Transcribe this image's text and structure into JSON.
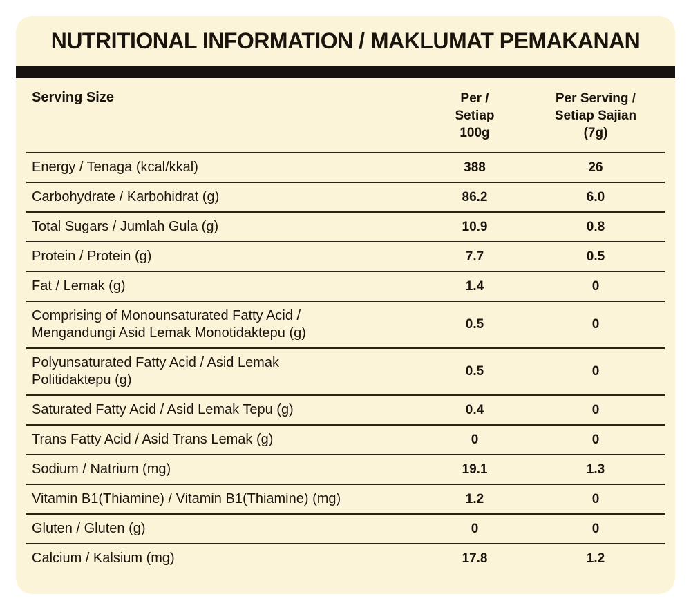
{
  "title": "NUTRITIONAL INFORMATION / MAKLUMAT PEMAKANAN",
  "colors": {
    "page-bg": "#FFFFFF",
    "card-bg": "#FBF4D9",
    "bar": "#171310",
    "ink": "#1A150C",
    "line": "#2B2415"
  },
  "table": {
    "header": {
      "label": "Serving Size",
      "col1": "Per /\nSetiap\n100g",
      "col2": "Per Serving /\nSetiap Sajian\n(7g)"
    },
    "rows": [
      {
        "label": "Energy / Tenaga (kcal/kkal)",
        "per_100g": "388",
        "per_serving": "26"
      },
      {
        "label": "Carbohydrate / Karbohidrat (g)",
        "per_100g": "86.2",
        "per_serving": "6.0"
      },
      {
        "label": "Total Sugars / Jumlah Gula (g)",
        "per_100g": "10.9",
        "per_serving": "0.8"
      },
      {
        "label": "Protein / Protein (g)",
        "per_100g": "7.7",
        "per_serving": "0.5"
      },
      {
        "label": "Fat / Lemak (g)",
        "per_100g": "1.4",
        "per_serving": "0"
      },
      {
        "label": "Comprising of Monounsaturated Fatty Acid /\nMengandungi Asid Lemak Monotidaktepu (g)",
        "per_100g": "0.5",
        "per_serving": "0"
      },
      {
        "label": "Polyunsaturated Fatty Acid / Asid Lemak\nPolitidaktepu (g)",
        "per_100g": "0.5",
        "per_serving": "0"
      },
      {
        "label": "Saturated Fatty Acid / Asid Lemak Tepu (g)",
        "per_100g": "0.4",
        "per_serving": "0"
      },
      {
        "label": "Trans Fatty Acid / Asid Trans Lemak (g)",
        "per_100g": "0",
        "per_serving": "0"
      },
      {
        "label": "Sodium / Natrium (mg)",
        "per_100g": "19.1",
        "per_serving": "1.3"
      },
      {
        "label": "Vitamin B1(Thiamine) / Vitamin B1(Thiamine) (mg)",
        "per_100g": "1.2",
        "per_serving": "0"
      },
      {
        "label": "Gluten / Gluten (g)",
        "per_100g": "0",
        "per_serving": "0"
      },
      {
        "label": "Calcium / Kalsium (mg)",
        "per_100g": "17.8",
        "per_serving": "1.2"
      }
    ]
  }
}
